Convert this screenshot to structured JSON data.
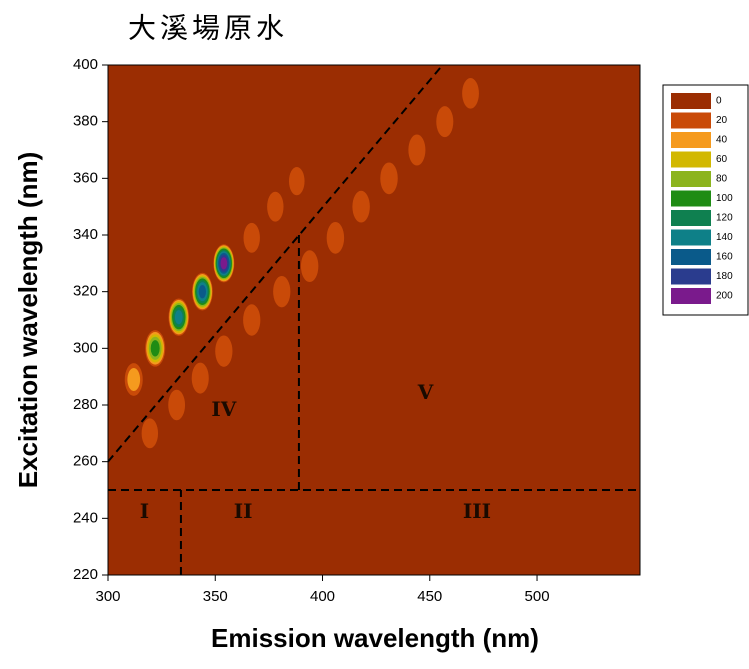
{
  "chart_data": {
    "type": "contour",
    "title": "大溪場原水",
    "x_label": "Emission wavelength (nm)",
    "y_label": "Excitation wavelength (nm)",
    "xlim": [
      300,
      548
    ],
    "xticks": [
      300,
      350,
      400,
      450,
      500
    ],
    "ylim": [
      220,
      400
    ],
    "yticks": [
      220,
      240,
      260,
      280,
      300,
      320,
      340,
      360,
      380,
      400
    ],
    "levels": [
      0,
      20,
      40,
      60,
      80,
      100,
      120,
      140,
      160,
      180,
      200
    ],
    "level_colors": [
      "#9b2d02",
      "#c94a08",
      "#f59a1e",
      "#d2b800",
      "#8cb41e",
      "#1f8c14",
      "#0f8050",
      "#0e8088",
      "#0a5a8a",
      "#2a3c8e",
      "#7a1a8c"
    ],
    "spots": {
      "x": [
        319.5,
        332,
        343,
        354,
        367,
        381,
        394,
        406,
        418,
        431,
        444,
        457,
        469,
        312,
        322,
        333,
        344,
        354,
        367,
        378,
        388
      ],
      "y": [
        270,
        280,
        289.5,
        299,
        310,
        320,
        329,
        339,
        350,
        360,
        370,
        380,
        390,
        289,
        300,
        311,
        320,
        330,
        339,
        350,
        359
      ],
      "values": [
        25,
        28,
        30,
        32,
        32,
        32,
        34,
        34,
        34,
        34,
        30,
        30,
        28,
        40,
        100,
        140,
        160,
        200,
        25,
        25,
        20
      ]
    },
    "boundaries": [
      {
        "x": [
          300,
          456
        ],
        "y": [
          260,
          400
        ]
      },
      {
        "x": [
          300,
          548
        ],
        "y": [
          250,
          250
        ]
      },
      {
        "x": [
          334,
          334
        ],
        "y": [
          220,
          250
        ]
      },
      {
        "x": [
          389,
          389
        ],
        "y": [
          250,
          340
        ]
      }
    ],
    "regions": {
      "labels": [
        "I",
        "II",
        "III",
        "IV",
        "V"
      ],
      "x": [
        317,
        363,
        472,
        354,
        448
      ],
      "y": [
        242,
        242,
        242,
        278,
        284
      ]
    }
  }
}
